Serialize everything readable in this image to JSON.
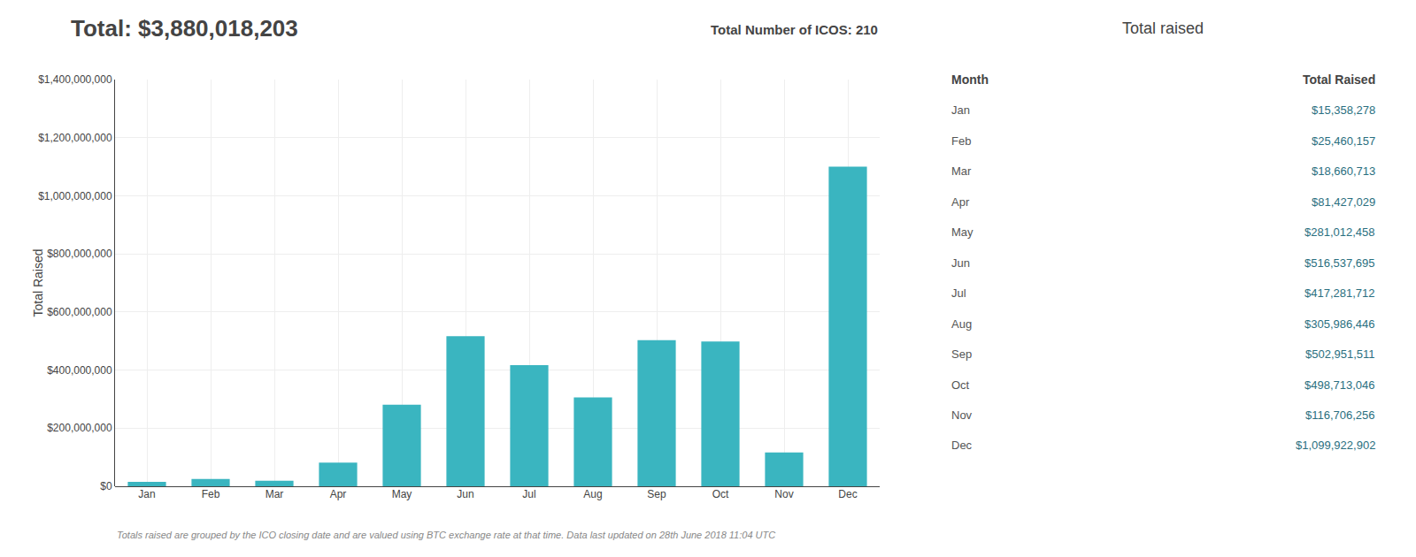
{
  "chart_data": {
    "type": "bar",
    "title": "Total: $3,880,018,203",
    "subtitle": "Total Number of ICOS: 210",
    "ylabel": "Total Raised",
    "annotations": [
      "Totals raised are grouped by the ICO closing date and are valued using BTC exchange rate at that time. Data last updated on 28th June 2018 11:04 UTC"
    ],
    "categories": [
      "Jan",
      "Feb",
      "Mar",
      "Apr",
      "May",
      "Jun",
      "Jul",
      "Aug",
      "Sep",
      "Oct",
      "Nov",
      "Dec"
    ],
    "values": [
      15358278,
      25460157,
      18660713,
      81427029,
      281012458,
      516537695,
      417281712,
      305986446,
      502951511,
      498713046,
      116706256,
      1099922902
    ],
    "value_labels": [
      "$15,358,278",
      "$25,460,157",
      "$18,660,713",
      "$81,427,029",
      "$281,012,458",
      "$516,537,695",
      "$417,281,712",
      "$305,986,446",
      "$502,951,511",
      "$498,713,046",
      "$116,706,256",
      "$1,099,922,902"
    ],
    "table": {
      "title": "Total raised",
      "columns": [
        "Month",
        "Total Raised"
      ]
    },
    "color": "#3ab5c0",
    "ylim": [
      0,
      1400000000
    ],
    "yticks": [
      {
        "value": 0,
        "label": "$0"
      },
      {
        "value": 200000000,
        "label": "$200,000,000"
      },
      {
        "value": 400000000,
        "label": "$400,000,000"
      },
      {
        "value": 600000000,
        "label": "$600,000,000"
      },
      {
        "value": 800000000,
        "label": "$800,000,000"
      },
      {
        "value": 1000000000,
        "label": "$1,000,000,000"
      },
      {
        "value": 1200000000,
        "label": "$1,200,000,000"
      },
      {
        "value": 1400000000,
        "label": "$1,400,000,000"
      }
    ],
    "grid": true
  }
}
